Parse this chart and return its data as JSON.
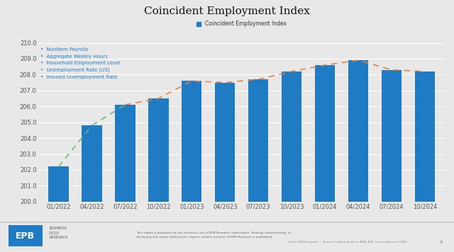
{
  "title": "Coincident Employment Index",
  "legend_label": "Coincident Employment Index",
  "bullet_items": [
    "Nonfarm Payrolls",
    "Aggregate Weekly Hours",
    "Household Employment Level",
    "Unemployment Rate (U3)",
    "Insured Unemployment Rate"
  ],
  "categories": [
    "01/2022",
    "04/2022",
    "07/2022",
    "10/2022",
    "01/2023",
    "04/2023",
    "07/2023",
    "10/2023",
    "01/2024",
    "04/2024",
    "07/2024",
    "10/2024"
  ],
  "bar_values": [
    202.2,
    204.8,
    206.1,
    206.5,
    207.6,
    207.5,
    207.7,
    208.2,
    208.6,
    208.9,
    208.3,
    208.2
  ],
  "bar_color": "#1f7bc4",
  "ylim": [
    200.0,
    210.0
  ],
  "yticks": [
    200.0,
    201.0,
    202.0,
    203.0,
    204.0,
    205.0,
    206.0,
    207.0,
    208.0,
    209.0,
    210.0
  ],
  "green_line_x": [
    0,
    1,
    2
  ],
  "green_line_y": [
    202.2,
    204.8,
    206.1
  ],
  "orange_line_x": [
    2,
    3,
    4,
    5,
    6,
    7,
    8,
    9,
    10,
    11
  ],
  "orange_line_y": [
    206.1,
    206.5,
    207.6,
    207.5,
    207.7,
    208.2,
    208.6,
    208.9,
    208.3,
    208.2
  ],
  "green_color": "#6abf69",
  "orange_color": "#e8823a",
  "bg_color": "#e8e8e8",
  "plot_bg_color": "#e8e8e8",
  "title_fontsize": 11,
  "footer_text": "This report is prepared for the exclusive use of EPB Research subscribers. Sharing, redistributing, or\ndisclosing this report without the express written consent of EPB Research is prohibited.",
  "chart_credit": "Chart: EPB Research  •  Source: Federal Reserve, BEA, BLS, Census Bureau, FRED"
}
